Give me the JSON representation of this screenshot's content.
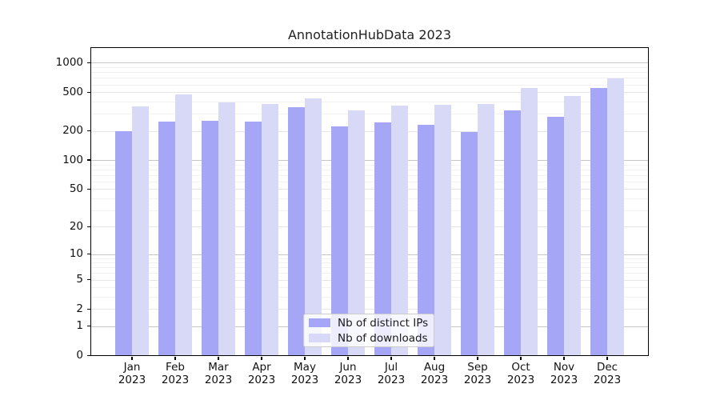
{
  "title": "AnnotationHubData 2023",
  "chart_data": {
    "type": "bar",
    "title": "AnnotationHubData 2023",
    "categories": [
      "Jan",
      "Feb",
      "Mar",
      "Apr",
      "May",
      "Jun",
      "Jul",
      "Aug",
      "Sep",
      "Oct",
      "Nov",
      "Dec"
    ],
    "category_year": "2023",
    "series": [
      {
        "name": "Nb of distinct IPs",
        "color": "#a6a6f7",
        "values": [
          199,
          248,
          253,
          250,
          347,
          224,
          245,
          230,
          195,
          326,
          277,
          553
        ]
      },
      {
        "name": "Nb of downloads",
        "color": "#d8d8f7",
        "values": [
          355,
          470,
          390,
          376,
          432,
          327,
          366,
          368,
          375,
          556,
          458,
          695
        ]
      }
    ],
    "yscale": "log10(value+1)",
    "yticks": [
      0,
      1,
      2,
      5,
      10,
      20,
      50,
      100,
      200,
      500,
      1000
    ],
    "ylim": [
      0,
      1460
    ],
    "xlabel": "",
    "ylabel": "",
    "grid": true,
    "legend_position": "lower center inside",
    "colors": {
      "major_decade_gridline": "#c6c6c6",
      "labeled_gridline": "#e7e7e7",
      "minor_gridline": "#f2f2f2",
      "axis": "#000000"
    }
  }
}
